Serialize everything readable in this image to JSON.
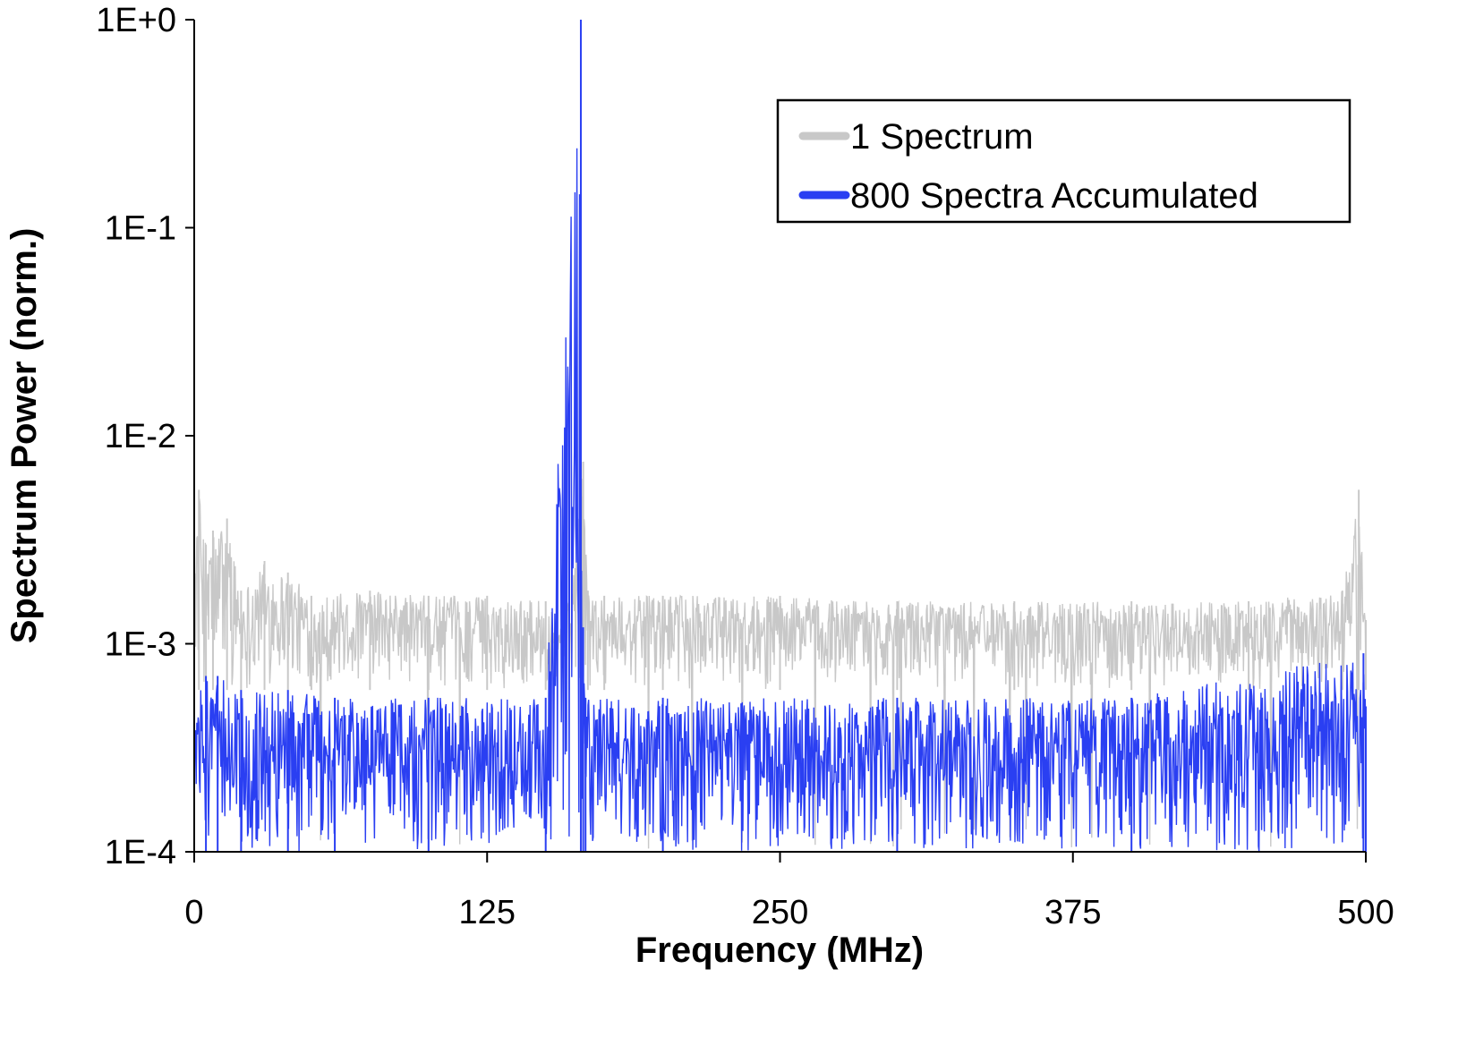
{
  "chart_data": {
    "type": "line",
    "title": "",
    "xlabel": "Frequency (MHz)",
    "ylabel": "Spectrum Power (norm.)",
    "xlim": [
      0,
      500
    ],
    "ylim": [
      0.0001,
      1
    ],
    "yscale": "log",
    "x_ticks": [
      "0",
      "125",
      "250",
      "375",
      "500"
    ],
    "y_ticks": [
      "1E+0",
      "1E-1",
      "1E-2",
      "1E-3",
      "1E-4"
    ],
    "grid": false,
    "legend_position": "top-right",
    "series": [
      {
        "name": "1 Spectrum",
        "color": "#c8c8c8",
        "noise_floor_range": [
          0.0006,
          0.002
        ],
        "x": [
          0,
          2,
          5,
          8,
          14,
          20,
          30,
          40,
          50,
          75,
          100,
          125,
          150,
          160,
          166,
          168,
          175,
          200,
          250,
          300,
          350,
          400,
          450,
          490,
          497,
          500
        ],
        "y": [
          0.003,
          0.0055,
          0.003,
          0.0035,
          0.004,
          0.0018,
          0.0025,
          0.0022,
          0.0017,
          0.0018,
          0.0017,
          0.0017,
          0.0016,
          0.0016,
          0.0075,
          0.0018,
          0.0017,
          0.0017,
          0.0017,
          0.0016,
          0.0016,
          0.0016,
          0.0016,
          0.0018,
          0.0055,
          0.0013
        ]
      },
      {
        "name": "800 Spectra Accumulated",
        "color": "#2a3ff2",
        "noise_floor_range": [
          0.0001,
          0.00055
        ],
        "x": [
          0,
          5,
          10,
          20,
          40,
          60,
          100,
          150,
          165,
          166,
          167,
          200,
          300,
          400,
          499,
          500
        ],
        "y": [
          0.0005,
          0.0007,
          0.0007,
          0.0006,
          0.0006,
          0.00055,
          0.00055,
          0.00055,
          1.0,
          0.0012,
          0.00055,
          0.00055,
          0.00055,
          0.00055,
          0.0009,
          0.0005
        ]
      }
    ]
  }
}
